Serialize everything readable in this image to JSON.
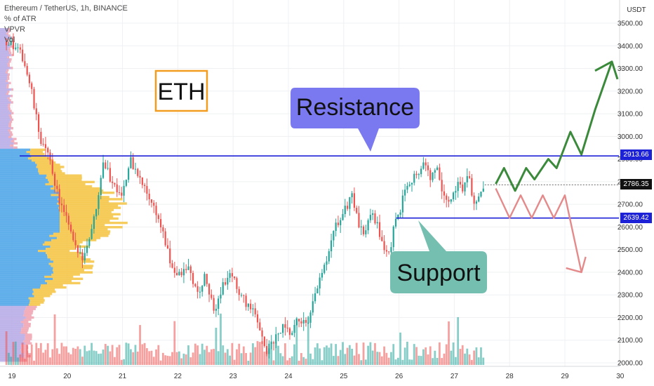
{
  "header": {
    "symbol": "Ethereum / TetherUS, 1h, BINANCE",
    "indicator_1": "% of ATR",
    "indicator_2": "VPVR",
    "indicator_3": "Vol"
  },
  "chart_data": {
    "type": "candlestick",
    "title": "ETH",
    "price_unit": "USDT",
    "y_ticks": [
      2000,
      2100,
      2200,
      2300,
      2400,
      2500,
      2600,
      2700,
      2800,
      2900,
      3000,
      3100,
      3200,
      3300,
      3400,
      3500
    ],
    "y_tick_labels": [
      "2000.00",
      "2100.00",
      "2200.00",
      "2300.00",
      "2400.00",
      "2500.00",
      "2600.00",
      "2700.00",
      "2800.00",
      "2900.00",
      "3000.00",
      "3100.00",
      "3200.00",
      "3300.00",
      "3400.00",
      "3500.00"
    ],
    "x_ticks": [
      19,
      20,
      21,
      22,
      23,
      24,
      25,
      26,
      27,
      28,
      29,
      30
    ],
    "x_tick_labels": [
      "19",
      "20",
      "21",
      "22",
      "23",
      "24",
      "25",
      "26",
      "27",
      "28",
      "29",
      "30"
    ],
    "ylim": [
      1975,
      3550
    ],
    "xlim": [
      18.8,
      30.3
    ],
    "approx_close_path": [
      [
        18.9,
        3420
      ],
      [
        19.0,
        3400
      ],
      [
        19.2,
        3350
      ],
      [
        19.35,
        3200
      ],
      [
        19.5,
        3000
      ],
      [
        19.7,
        2880
      ],
      [
        19.85,
        2720
      ],
      [
        20.0,
        2620
      ],
      [
        20.15,
        2500
      ],
      [
        20.3,
        2470
      ],
      [
        20.5,
        2650
      ],
      [
        20.65,
        2900
      ],
      [
        20.8,
        2800
      ],
      [
        21.0,
        2750
      ],
      [
        21.15,
        2890
      ],
      [
        21.35,
        2790
      ],
      [
        21.55,
        2700
      ],
      [
        21.7,
        2600
      ],
      [
        21.85,
        2450
      ],
      [
        22.0,
        2380
      ],
      [
        22.2,
        2420
      ],
      [
        22.35,
        2300
      ],
      [
        22.5,
        2380
      ],
      [
        22.65,
        2220
      ],
      [
        22.8,
        2340
      ],
      [
        23.0,
        2400
      ],
      [
        23.1,
        2300
      ],
      [
        23.3,
        2250
      ],
      [
        23.5,
        2150
      ],
      [
        23.6,
        2050
      ],
      [
        23.75,
        2100
      ],
      [
        23.9,
        2150
      ],
      [
        24.05,
        2120
      ],
      [
        24.2,
        2200
      ],
      [
        24.35,
        2150
      ],
      [
        24.5,
        2320
      ],
      [
        24.7,
        2450
      ],
      [
        24.85,
        2600
      ],
      [
        25.0,
        2660
      ],
      [
        25.15,
        2750
      ],
      [
        25.25,
        2620
      ],
      [
        25.35,
        2560
      ],
      [
        25.5,
        2690
      ],
      [
        25.65,
        2570
      ],
      [
        25.8,
        2460
      ],
      [
        25.9,
        2580
      ],
      [
        26.0,
        2660
      ],
      [
        26.15,
        2800
      ],
      [
        26.3,
        2830
      ],
      [
        26.45,
        2880
      ],
      [
        26.55,
        2820
      ],
      [
        26.7,
        2850
      ],
      [
        26.8,
        2720
      ],
      [
        26.95,
        2720
      ],
      [
        27.05,
        2800
      ],
      [
        27.15,
        2760
      ],
      [
        27.25,
        2860
      ],
      [
        27.35,
        2700
      ],
      [
        27.45,
        2720
      ],
      [
        27.55,
        2786
      ]
    ],
    "volume_note": "hourly volume bars along bottom",
    "levels": [
      {
        "name": "resistance",
        "value": 2913.66,
        "label": "2913.66",
        "color": "#1e22d6"
      },
      {
        "name": "current",
        "value": 2786.35,
        "label": "2786.35",
        "color": "#111111"
      },
      {
        "name": "support",
        "value": 2639.42,
        "label": "2639.42",
        "color": "#1e22d6"
      }
    ],
    "bull_projection": [
      [
        27.75,
        2790
      ],
      [
        27.9,
        2860
      ],
      [
        28.1,
        2760
      ],
      [
        28.3,
        2860
      ],
      [
        28.45,
        2810
      ],
      [
        28.7,
        2900
      ],
      [
        28.85,
        2860
      ],
      [
        29.1,
        3020
      ],
      [
        29.3,
        2920
      ],
      [
        29.55,
        3120
      ],
      [
        29.85,
        3330
      ]
    ],
    "bear_projection": [
      [
        27.75,
        2770
      ],
      [
        28.0,
        2640
      ],
      [
        28.2,
        2740
      ],
      [
        28.4,
        2640
      ],
      [
        28.6,
        2740
      ],
      [
        28.8,
        2640
      ],
      [
        29.0,
        2740
      ],
      [
        29.3,
        2400
      ]
    ],
    "annotations": {
      "resistance_label": "Resistance",
      "support_label": "Support",
      "coin_label": "ETH"
    },
    "colors": {
      "up": "#26a69a",
      "down": "#ef5350",
      "bull_arrow": "#3b8a3b",
      "bear_arrow": "#e58a8a",
      "resistance_box": "#7b79f0",
      "support_box": "#75bfb0",
      "coin_box_border": "#f29d1f",
      "vpvr_blue": "#4aa3e8",
      "vpvr_yellow": "#f5c341",
      "vpvr_purple": "#b6a9e5",
      "vpvr_pink": "#f0a2b0"
    }
  }
}
